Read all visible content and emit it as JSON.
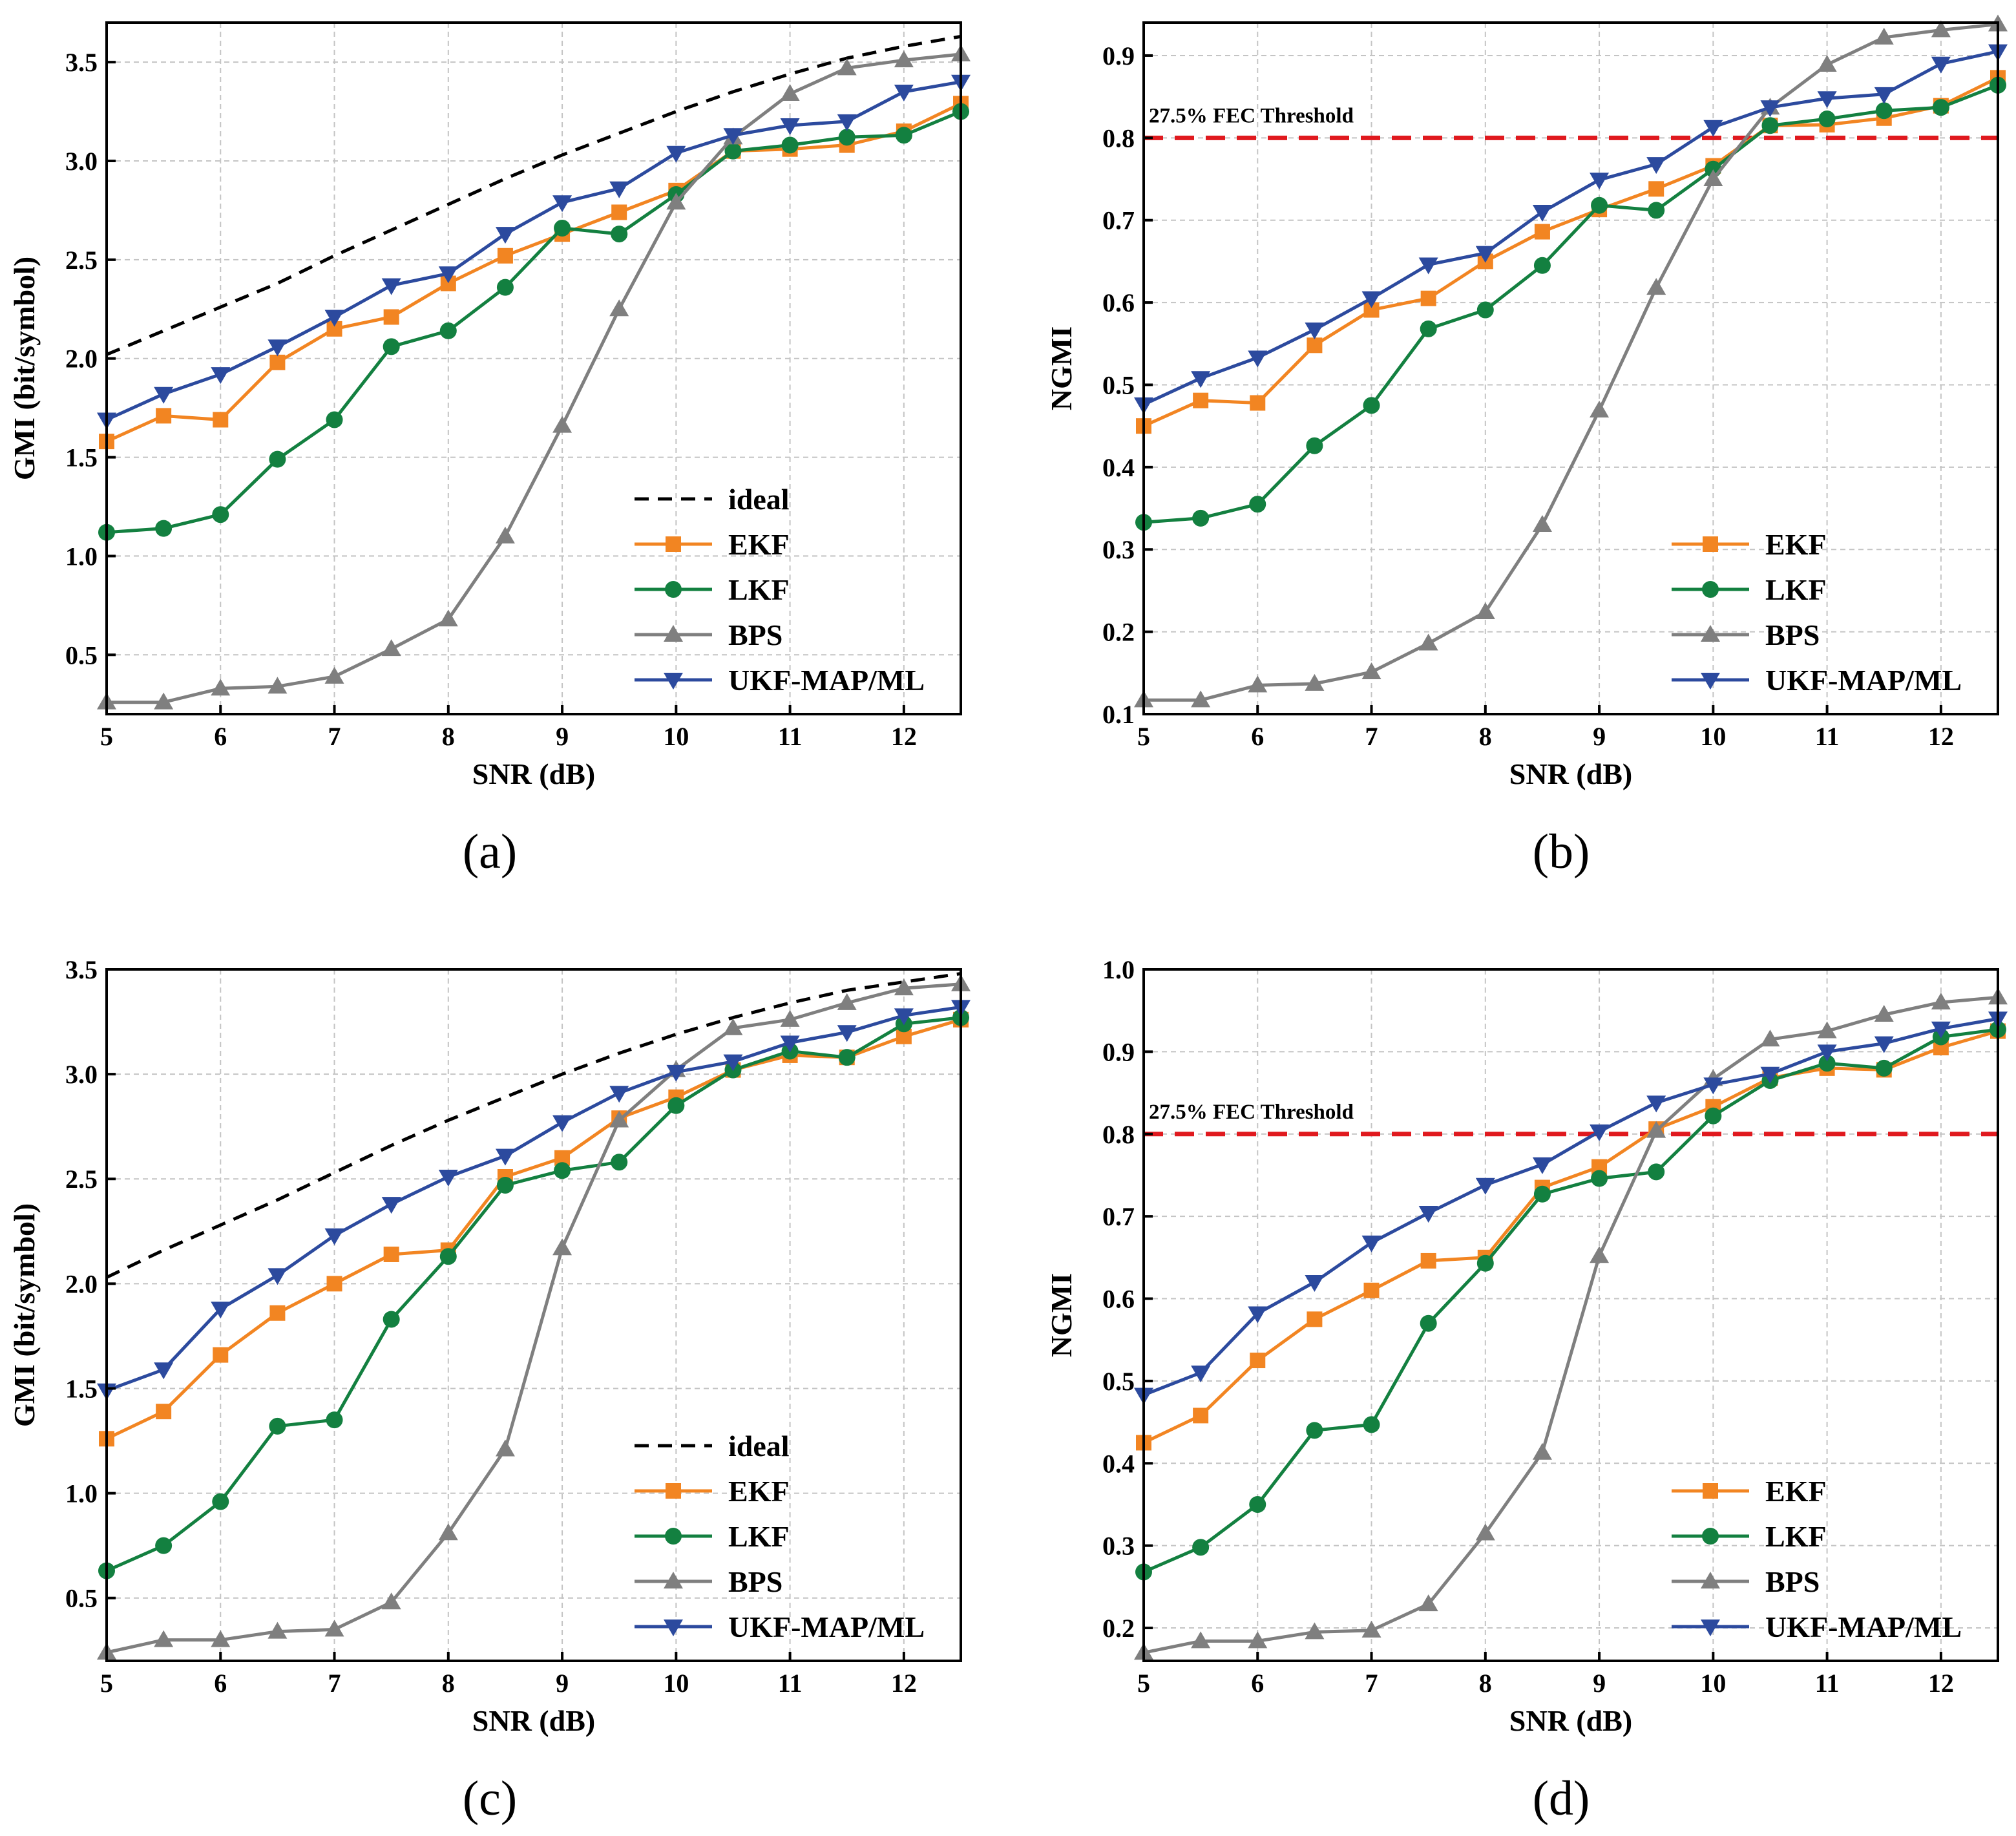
{
  "figure": {
    "captions": [
      "(a)",
      "(b)",
      "(c)",
      "(d)"
    ]
  },
  "colors": {
    "ideal": "#000000",
    "EKF": "#f28522",
    "LKF": "#138040",
    "BPS": "#7f7f7f",
    "UKF-MAP/ML": "#2c4a9e",
    "threshold": "#e0191e",
    "grid": "#c4c4c4"
  },
  "chart_data": [
    {
      "type": "line",
      "title": "(a)",
      "xlabel": "SNR (dB)",
      "ylabel": "GMI (bit/symbol)",
      "xlim": [
        5,
        12.5
      ],
      "ylim": [
        0.2,
        3.7
      ],
      "xticks": [
        "5",
        "6",
        "7",
        "8",
        "9",
        "10",
        "11",
        "12"
      ],
      "yticks": [
        "0.5",
        "1.0",
        "1.5",
        "2.0",
        "2.5",
        "3.0",
        "3.5"
      ],
      "x": [
        5,
        5.5,
        6,
        6.5,
        7,
        7.5,
        8,
        8.5,
        9,
        9.5,
        10,
        10.5,
        11,
        11.5,
        12,
        12.5
      ],
      "legend_position": "bottom-right",
      "series": [
        {
          "name": "ideal",
          "style": "dashed",
          "values": [
            2.02,
            2.14,
            2.26,
            2.38,
            2.52,
            2.65,
            2.78,
            2.91,
            3.03,
            3.14,
            3.25,
            3.35,
            3.44,
            3.52,
            3.58,
            3.63
          ]
        },
        {
          "name": "EKF",
          "marker": "square",
          "values": [
            1.58,
            1.71,
            1.69,
            1.98,
            2.15,
            2.21,
            2.38,
            2.52,
            2.63,
            2.74,
            2.85,
            3.05,
            3.06,
            3.08,
            3.15,
            3.29
          ]
        },
        {
          "name": "LKF",
          "marker": "circle",
          "values": [
            1.12,
            1.14,
            1.21,
            1.49,
            1.69,
            2.06,
            2.14,
            2.36,
            2.66,
            2.63,
            2.83,
            3.05,
            3.08,
            3.12,
            3.13,
            3.25
          ]
        },
        {
          "name": "BPS",
          "marker": "triangle-up",
          "values": [
            0.26,
            0.26,
            0.33,
            0.34,
            0.39,
            0.53,
            0.68,
            1.1,
            1.66,
            2.25,
            2.79,
            3.12,
            3.34,
            3.47,
            3.51,
            3.54
          ]
        },
        {
          "name": "UKF-MAP/ML",
          "marker": "triangle-down",
          "values": [
            1.69,
            1.82,
            1.92,
            2.06,
            2.21,
            2.37,
            2.43,
            2.63,
            2.79,
            2.86,
            3.04,
            3.13,
            3.18,
            3.2,
            3.35,
            3.4
          ]
        }
      ]
    },
    {
      "type": "line",
      "title": "(b)",
      "xlabel": "SNR (dB)",
      "ylabel": "NGMI",
      "xlim": [
        5,
        12.5
      ],
      "ylim": [
        0.1,
        0.94
      ],
      "xticks": [
        "5",
        "6",
        "7",
        "8",
        "9",
        "10",
        "11",
        "12"
      ],
      "yticks": [
        "0.1",
        "0.2",
        "0.3",
        "0.4",
        "0.5",
        "0.6",
        "0.7",
        "0.8",
        "0.9"
      ],
      "x": [
        5,
        5.5,
        6,
        6.5,
        7,
        7.5,
        8,
        8.5,
        9,
        9.5,
        10,
        10.5,
        11,
        11.5,
        12,
        12.5
      ],
      "legend_position": "bottom-right",
      "threshold": {
        "value": 0.8,
        "label": "27.5% FEC Threshold"
      },
      "series": [
        {
          "name": "EKF",
          "marker": "square",
          "values": [
            0.45,
            0.481,
            0.478,
            0.548,
            0.591,
            0.605,
            0.65,
            0.686,
            0.713,
            0.738,
            0.766,
            0.815,
            0.816,
            0.824,
            0.839,
            0.873
          ]
        },
        {
          "name": "LKF",
          "marker": "circle",
          "values": [
            0.333,
            0.338,
            0.355,
            0.426,
            0.475,
            0.568,
            0.591,
            0.645,
            0.718,
            0.712,
            0.762,
            0.815,
            0.823,
            0.833,
            0.837,
            0.864
          ]
        },
        {
          "name": "BPS",
          "marker": "triangle-up",
          "values": [
            0.117,
            0.117,
            0.135,
            0.137,
            0.151,
            0.186,
            0.224,
            0.33,
            0.469,
            0.618,
            0.75,
            0.837,
            0.889,
            0.922,
            0.931,
            0.938
          ]
        },
        {
          "name": "UKF-MAP/ML",
          "marker": "triangle-down",
          "values": [
            0.476,
            0.508,
            0.533,
            0.567,
            0.605,
            0.646,
            0.66,
            0.71,
            0.749,
            0.768,
            0.813,
            0.837,
            0.848,
            0.853,
            0.89,
            0.905
          ]
        }
      ]
    },
    {
      "type": "line",
      "title": "(c)",
      "xlabel": "SNR (dB)",
      "ylabel": "GMI (bit/symbol)",
      "xlim": [
        5,
        12.5
      ],
      "ylim": [
        0.2,
        3.5
      ],
      "xticks": [
        "5",
        "6",
        "7",
        "8",
        "9",
        "10",
        "11",
        "12"
      ],
      "yticks": [
        "0.5",
        "1.0",
        "1.5",
        "2.0",
        "2.5",
        "3.0",
        "3.5"
      ],
      "x": [
        5,
        5.5,
        6,
        6.5,
        7,
        7.5,
        8,
        8.5,
        9,
        9.5,
        10,
        10.5,
        11,
        11.5,
        12,
        12.5
      ],
      "legend_position": "bottom-right",
      "series": [
        {
          "name": "ideal",
          "style": "dashed",
          "values": [
            2.03,
            2.16,
            2.28,
            2.4,
            2.53,
            2.66,
            2.78,
            2.89,
            3.0,
            3.1,
            3.19,
            3.27,
            3.34,
            3.4,
            3.44,
            3.48
          ]
        },
        {
          "name": "EKF",
          "marker": "square",
          "values": [
            1.26,
            1.39,
            1.66,
            1.86,
            2.0,
            2.14,
            2.16,
            2.51,
            2.6,
            2.79,
            2.89,
            3.02,
            3.09,
            3.08,
            3.18,
            3.26
          ]
        },
        {
          "name": "LKF",
          "marker": "circle",
          "values": [
            0.63,
            0.75,
            0.96,
            1.32,
            1.35,
            1.83,
            2.13,
            2.47,
            2.54,
            2.58,
            2.85,
            3.02,
            3.11,
            3.08,
            3.24,
            3.27
          ]
        },
        {
          "name": "BPS",
          "marker": "triangle-up",
          "values": [
            0.24,
            0.3,
            0.3,
            0.34,
            0.35,
            0.48,
            0.81,
            1.21,
            2.17,
            2.78,
            3.02,
            3.22,
            3.26,
            3.34,
            3.41,
            3.43
          ]
        },
        {
          "name": "UKF-MAP/ML",
          "marker": "triangle-down",
          "values": [
            1.49,
            1.59,
            1.88,
            2.04,
            2.23,
            2.38,
            2.51,
            2.61,
            2.77,
            2.91,
            3.01,
            3.06,
            3.15,
            3.2,
            3.28,
            3.32
          ]
        }
      ]
    },
    {
      "type": "line",
      "title": "(d)",
      "xlabel": "SNR (dB)",
      "ylabel": "NGMI",
      "xlim": [
        5,
        12.5
      ],
      "ylim": [
        0.16,
        1.0
      ],
      "xticks": [
        "5",
        "6",
        "7",
        "8",
        "9",
        "10",
        "11",
        "12"
      ],
      "yticks": [
        "0.2",
        "0.3",
        "0.4",
        "0.5",
        "0.6",
        "0.7",
        "0.8",
        "0.9",
        "1.0"
      ],
      "x": [
        5,
        5.5,
        6,
        6.5,
        7,
        7.5,
        8,
        8.5,
        9,
        9.5,
        10,
        10.5,
        11,
        11.5,
        12,
        12.5
      ],
      "legend_position": "bottom-right",
      "threshold": {
        "value": 0.8,
        "label": "27.5% FEC Threshold"
      },
      "series": [
        {
          "name": "EKF",
          "marker": "square",
          "values": [
            0.425,
            0.458,
            0.525,
            0.575,
            0.61,
            0.646,
            0.65,
            0.735,
            0.76,
            0.806,
            0.833,
            0.868,
            0.88,
            0.878,
            0.905,
            0.925
          ]
        },
        {
          "name": "LKF",
          "marker": "circle",
          "values": [
            0.268,
            0.298,
            0.35,
            0.44,
            0.447,
            0.57,
            0.643,
            0.727,
            0.746,
            0.754,
            0.822,
            0.865,
            0.886,
            0.88,
            0.918,
            0.927
          ]
        },
        {
          "name": "BPS",
          "marker": "triangle-up",
          "values": [
            0.17,
            0.184,
            0.184,
            0.195,
            0.197,
            0.229,
            0.315,
            0.413,
            0.652,
            0.804,
            0.867,
            0.915,
            0.925,
            0.945,
            0.96,
            0.966
          ]
        },
        {
          "name": "UKF-MAP/ML",
          "marker": "triangle-down",
          "values": [
            0.483,
            0.51,
            0.582,
            0.62,
            0.668,
            0.704,
            0.738,
            0.763,
            0.803,
            0.838,
            0.86,
            0.873,
            0.9,
            0.91,
            0.928,
            0.94
          ]
        }
      ]
    }
  ]
}
